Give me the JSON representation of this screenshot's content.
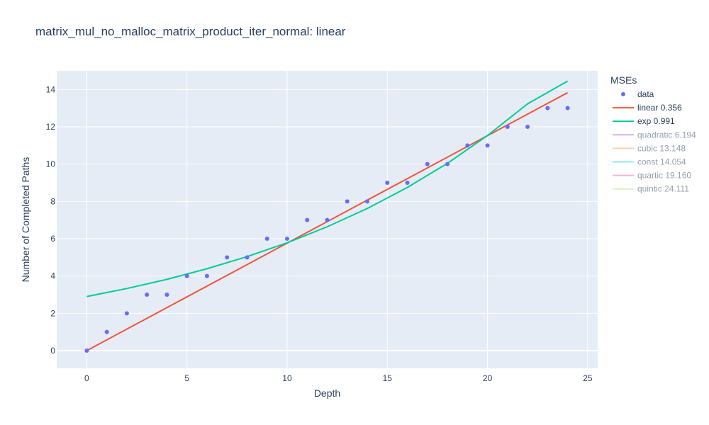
{
  "chart_data": {
    "type": "scatter",
    "title": "matrix_mul_no_malloc_matrix_product_iter_normal: linear",
    "xlabel": "Depth",
    "ylabel": "Number of Completed Paths",
    "xlim": [
      -1.5,
      25.5
    ],
    "ylim": [
      -0.95,
      15
    ],
    "xticks": [
      0,
      5,
      10,
      15,
      20,
      25
    ],
    "yticks": [
      0,
      2,
      4,
      6,
      8,
      10,
      12,
      14
    ],
    "grid": true,
    "legend_title": "MSEs",
    "legend_position": "right",
    "background": "#e5ecf6",
    "series": [
      {
        "name": "data",
        "kind": "markers",
        "color": "#636efa",
        "visible": true,
        "x": [
          0,
          1,
          2,
          3,
          4,
          5,
          6,
          7,
          8,
          9,
          10,
          11,
          12,
          13,
          14,
          15,
          16,
          17,
          18,
          19,
          20,
          21,
          22,
          23,
          24
        ],
        "y": [
          0,
          1,
          2,
          3,
          3,
          4,
          4,
          5,
          5,
          6,
          6,
          7,
          7,
          8,
          8,
          9,
          9,
          10,
          10,
          11,
          11,
          12,
          12,
          13,
          13
        ]
      },
      {
        "name": "linear 0.356",
        "kind": "line",
        "color": "#ef553b",
        "visible": true,
        "x": [
          0,
          24
        ],
        "y": [
          0,
          13.83
        ]
      },
      {
        "name": "exp 0.991",
        "kind": "line",
        "color": "#00cc96",
        "visible": true,
        "x": [
          0,
          2,
          4,
          6,
          8,
          10,
          12,
          14,
          16,
          18,
          20,
          22,
          24
        ],
        "y": [
          2.9,
          3.33,
          3.82,
          4.39,
          5.04,
          5.78,
          6.64,
          7.62,
          8.75,
          10.04,
          11.53,
          13.23,
          14.45
        ]
      },
      {
        "name": "quadratic 6.194",
        "kind": "line",
        "color": "#ab63fa",
        "visible": false
      },
      {
        "name": "cubic 13.148",
        "kind": "line",
        "color": "#ffa15a",
        "visible": false
      },
      {
        "name": "const 14.054",
        "kind": "line",
        "color": "#19d3f3",
        "visible": false
      },
      {
        "name": "quartic 19.160",
        "kind": "line",
        "color": "#ff6692",
        "visible": false
      },
      {
        "name": "quintic 24.111",
        "kind": "line",
        "color": "#b6e880",
        "visible": false
      }
    ]
  }
}
